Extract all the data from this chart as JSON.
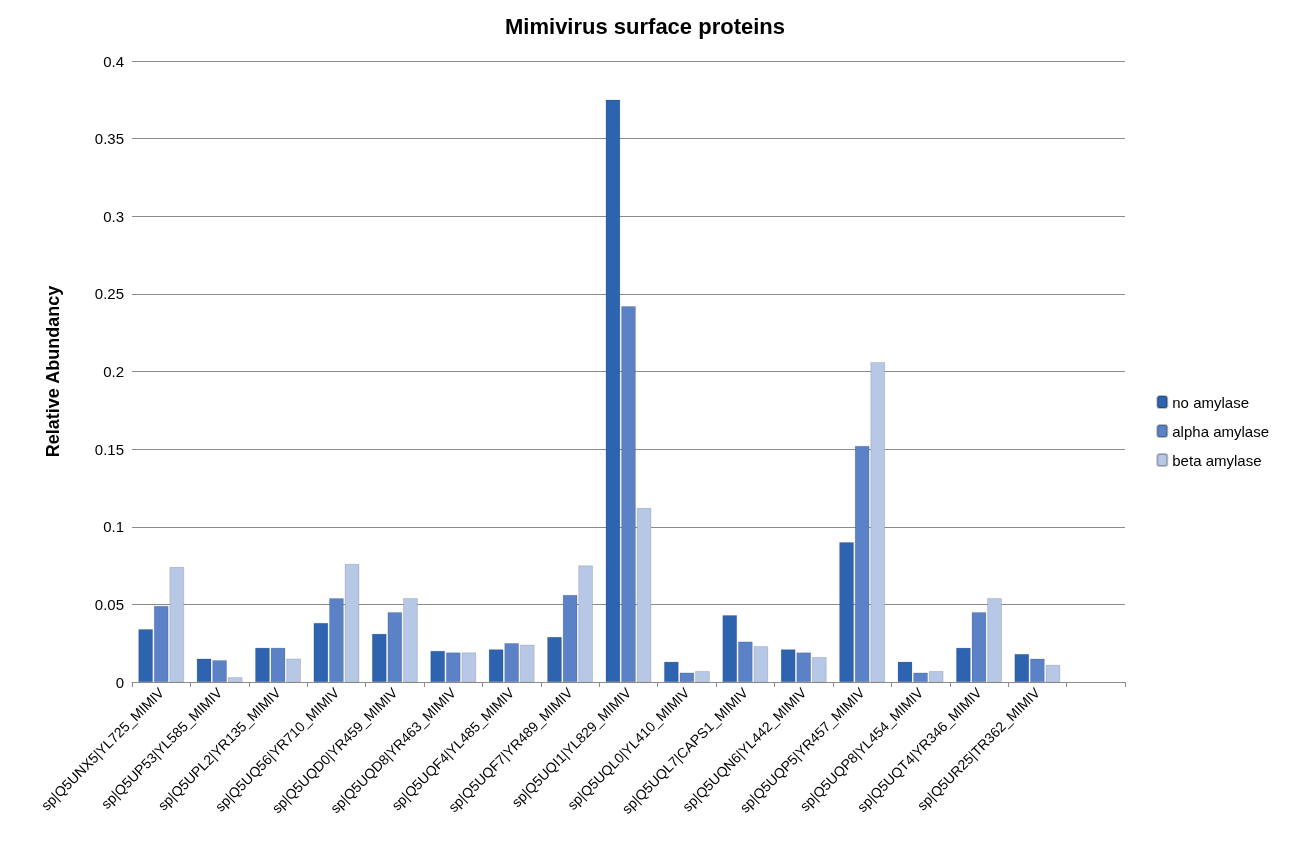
{
  "chart_data": {
    "type": "bar",
    "title": "Mimivirus surface proteins",
    "ylabel": "Relative Abundancy",
    "categories": [
      "sp|Q5UNX5|YL725_MIMIV",
      "sp|Q5UP53|YL585_MIMIV",
      "sp|Q5UPL2|YR135_MIMIV",
      "sp|Q5UQ56|YR710_MIMIV",
      "sp|Q5UQD0|YR459_MIMIV",
      "sp|Q5UQD8|YR463_MIMIV",
      "sp|Q5UQF4|YL485_MIMIV",
      "sp|Q5UQF7|YR489_MIMIV",
      "sp|Q5UQI1|YL829_MIMIV",
      "sp|Q5UQL0|YL410_MIMIV",
      "sp|Q5UQL7|CAPS1_MIMIV",
      "sp|Q5UQN6|YL442_MIMIV",
      "sp|Q5UQP5|YR457_MIMIV",
      "sp|Q5UQP8|YL454_MIMIV",
      "sp|Q5UQT4|YR346_MIMIV",
      "sp|Q5UR25|TR362_MIMIV",
      null
    ],
    "series": [
      {
        "name": "no amylase",
        "color": "#2e63b0",
        "values": [
          0.034,
          0.015,
          0.022,
          0.038,
          0.031,
          0.02,
          0.021,
          0.029,
          0.375,
          0.013,
          0.043,
          0.021,
          0.09,
          0.013,
          0.022,
          0.018,
          null
        ]
      },
      {
        "name": "alpha amylase",
        "color": "#5b82c6",
        "values": [
          0.049,
          0.014,
          0.022,
          0.054,
          0.045,
          0.019,
          0.025,
          0.056,
          0.242,
          0.006,
          0.026,
          0.019,
          0.152,
          0.006,
          0.045,
          0.015,
          null
        ]
      },
      {
        "name": "beta amylase",
        "color": "#b7c7e6",
        "values": [
          0.074,
          0.003,
          0.015,
          0.076,
          0.054,
          0.019,
          0.024,
          0.075,
          0.112,
          0.007,
          0.023,
          0.016,
          0.206,
          0.007,
          0.054,
          0.011,
          null
        ]
      }
    ],
    "ylim": [
      0,
      0.4
    ],
    "yticks": [
      0,
      0.05,
      0.1,
      0.15,
      0.2,
      0.25,
      0.3,
      0.35,
      0.4
    ],
    "grid": "y",
    "legend": "right"
  }
}
